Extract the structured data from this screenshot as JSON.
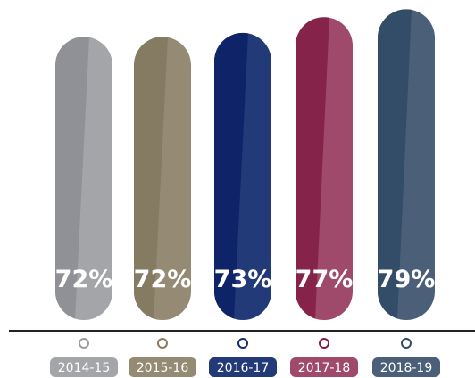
{
  "chart_data": {
    "type": "bar",
    "categories": [
      "2014-15",
      "2015-16",
      "2016-17",
      "2017-18",
      "2018-19"
    ],
    "values": [
      72,
      72,
      73,
      77,
      79
    ],
    "value_labels": [
      "72%",
      "72%",
      "73%",
      "77%",
      "79%"
    ],
    "colors": [
      "#a3a5a8",
      "#958a73",
      "#233a78",
      "#a04a6b",
      "#4b6078"
    ],
    "dark_colors": [
      "#8f9196",
      "#857a62",
      "#0f2468",
      "#86234a",
      "#334c67"
    ],
    "marker_colors": [
      "#9c9c9c",
      "#8a7a5e",
      "#1b2c68",
      "#7e1f47",
      "#344a64"
    ],
    "title": "",
    "xlabel": "",
    "ylabel": "",
    "grid": false,
    "legend": "none"
  }
}
